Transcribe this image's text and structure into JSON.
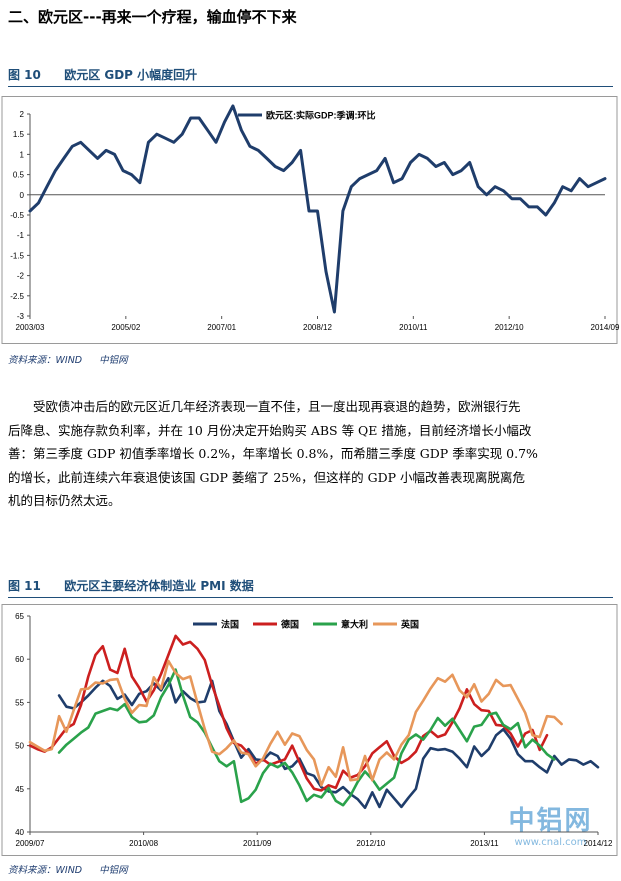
{
  "section": {
    "title": "二、欧元区---再来一个疗程，输血停不下来"
  },
  "figure10": {
    "number": "图 10",
    "title": "欧元区 GDP 小幅度回升",
    "source": "资料来源：WIND",
    "source2": "中铝网"
  },
  "paragraph": {
    "lines": [
      "受欧债冲击后的欧元区近几年经济表现一直不佳，且一度出现再衰退的趋势，欧洲银行先",
      "后降息、实施存款负利率，并在 10 月份决定开始购买 ABS 等 QE 措施，目前经济增长小幅改",
      "善：第三季度 GDP 初值季率增长 0.2%，年率增长 0.8%，而希腊三季度 GDP 季率实现 0.7%",
      "的增长，此前连续六年衰退使该国 GDP 萎缩了 25%，但这样的 GDP 小幅改善表现离脱离危",
      "机的目标仍然太远。"
    ]
  },
  "figure11": {
    "number": "图 11",
    "title": "欧元区主要经济体制造业 PMI 数据",
    "source": "资料来源：WIND",
    "source2": "中铝网"
  },
  "watermark": {
    "logo_text": "中铝网",
    "url": "www.cnal.com"
  },
  "chart_data": [
    {
      "type": "line",
      "x_ticks": [
        "2003/03",
        "2005/02",
        "2007/01",
        "2008/12",
        "2010/11",
        "2012/10",
        "2014/09"
      ],
      "ylim": [
        -3,
        2
      ],
      "y_ticks": [
        2,
        1.5,
        1,
        0.5,
        0,
        -0.5,
        -1,
        -1.5,
        -2,
        -2.5,
        -3
      ],
      "legend_position": "top-center",
      "series": [
        {
          "name": "欧元区:实际GDP:季调:环比",
          "color": "#1f3d6b",
          "values": [
            -0.4,
            -0.2,
            0.2,
            0.6,
            0.9,
            1.2,
            1.3,
            1.1,
            0.9,
            1.1,
            1.0,
            0.6,
            0.5,
            0.3,
            1.3,
            1.5,
            1.4,
            1.3,
            1.5,
            1.9,
            1.9,
            1.6,
            1.3,
            1.8,
            2.2,
            1.6,
            1.2,
            1.1,
            0.9,
            0.7,
            0.6,
            0.8,
            1.1,
            -0.4,
            -0.4,
            -1.9,
            -2.9,
            -0.4,
            0.2,
            0.4,
            0.5,
            0.6,
            0.9,
            0.3,
            0.4,
            0.8,
            1.0,
            0.9,
            0.7,
            0.8,
            0.5,
            0.6,
            0.8,
            0.2,
            0.0,
            0.2,
            0.1,
            -0.1,
            -0.1,
            -0.3,
            -0.3,
            -0.5,
            -0.2,
            0.2,
            0.1,
            0.4,
            0.2,
            0.3,
            0.4
          ]
        }
      ]
    },
    {
      "type": "line",
      "x_ticks": [
        "2009/07",
        "2010/08",
        "2011/09",
        "2012/10",
        "2013/11",
        "2014/12"
      ],
      "ylim": [
        40,
        65
      ],
      "y_ticks": [
        65,
        60,
        55,
        50,
        45,
        40
      ],
      "legend_position": "top-center",
      "series": [
        {
          "name": "法国",
          "color": "#1f3d6b",
          "values": [
            null,
            null,
            null,
            null,
            55.8,
            54.5,
            54.3,
            55.0,
            55.8,
            56.7,
            57.5,
            56.9,
            55.4,
            55.9,
            54.7,
            56.0,
            56.3,
            57.2,
            56.4,
            57.8,
            55.0,
            56.3,
            55.5,
            55.0,
            55.1,
            57.5,
            54.0,
            52.5,
            50.5,
            48.6,
            49.6,
            48.4,
            48.3,
            49.2,
            48.8,
            47.3,
            47.6,
            48.5,
            46.8,
            46.5,
            45.2,
            44.7,
            44.6,
            45.2,
            44.4,
            43.8,
            42.8,
            44.6,
            42.9,
            44.9,
            43.9,
            42.9,
            44.0,
            45.0,
            48.5,
            49.7,
            49.5,
            49.6,
            49.3,
            48.5,
            47.5,
            49.9,
            48.8,
            49.6,
            51.2,
            51.9,
            50.8,
            49.0,
            48.2,
            48.2,
            47.5,
            46.9,
            48.8,
            47.8,
            48.4,
            48.3,
            47.8,
            48.2,
            47.5
          ]
        },
        {
          "name": "德国",
          "color": "#cc1f1f",
          "values": [
            50.0,
            49.6,
            49.3,
            49.8,
            50.9,
            52.0,
            52.5,
            54.7,
            58.0,
            60.5,
            61.5,
            58.8,
            58.4,
            61.2,
            58.0,
            56.7,
            55.1,
            56.4,
            58.3,
            60.5,
            62.7,
            61.7,
            62.0,
            61.2,
            59.9,
            57.0,
            54.6,
            52.0,
            50.3,
            50.0,
            49.1,
            47.9,
            48.4,
            47.8,
            48.1,
            48.4,
            50.0,
            48.1,
            46.2,
            45.0,
            44.8,
            45.4,
            45.1,
            47.1,
            46.3,
            46.6,
            47.6,
            49.1,
            49.8,
            50.5,
            48.8,
            48.0,
            48.5,
            49.3,
            51.1,
            51.7,
            51.0,
            51.3,
            52.7,
            54.3,
            56.5,
            54.8,
            54.1,
            54.0,
            52.4,
            52.3,
            51.4,
            49.9,
            51.4,
            51.8,
            49.5,
            51.2
          ]
        },
        {
          "name": "意大利",
          "color": "#2aa24b",
          "values": [
            null,
            null,
            null,
            null,
            49.2,
            50.1,
            50.8,
            51.5,
            52.1,
            53.7,
            54.0,
            54.3,
            54.1,
            54.8,
            53.3,
            52.7,
            52.8,
            53.5,
            55.6,
            57.0,
            58.8,
            55.8,
            53.3,
            52.7,
            51.5,
            49.8,
            48.2,
            47.6,
            48.2,
            43.5,
            43.9,
            44.9,
            46.8,
            47.9,
            47.5,
            48.0,
            46.9,
            45.4,
            43.6,
            44.3,
            44.0,
            45.1,
            43.6,
            43.1,
            44.2,
            45.8,
            47.0,
            46.1,
            44.9,
            45.6,
            46.3,
            49.1,
            50.7,
            51.3,
            50.7,
            51.8,
            53.2,
            52.3,
            53.1,
            51.8,
            50.5,
            52.2,
            52.4,
            53.6,
            53.8,
            52.4,
            51.9,
            52.6,
            49.8,
            50.7,
            50.0,
            49.0,
            48.4
          ]
        },
        {
          "name": "英国",
          "color": "#e7975a",
          "values": [
            50.4,
            49.9,
            49.4,
            49.6,
            53.4,
            51.6,
            54.1,
            56.5,
            56.6,
            57.3,
            57.2,
            57.6,
            57.7,
            55.4,
            53.8,
            54.7,
            54.6,
            57.9,
            56.6,
            59.8,
            58.4,
            57.7,
            58.0,
            54.9,
            51.9,
            49.3,
            49.0,
            49.7,
            50.6,
            49.2,
            49.0,
            47.6,
            48.5,
            50.2,
            51.6,
            50.1,
            51.4,
            51.1,
            49.5,
            48.4,
            45.4,
            47.5,
            46.4,
            49.8,
            46.0,
            46.1,
            48.8,
            46.0,
            48.4,
            49.2,
            48.4,
            50.1,
            51.2,
            53.9,
            55.2,
            56.6,
            57.8,
            57.4,
            58.2,
            56.4,
            55.6,
            57.1,
            55.1,
            56.0,
            57.6,
            56.9,
            57.0,
            55.4,
            53.8,
            51.2,
            51.0,
            53.4,
            53.3,
            52.5
          ]
        }
      ]
    }
  ]
}
